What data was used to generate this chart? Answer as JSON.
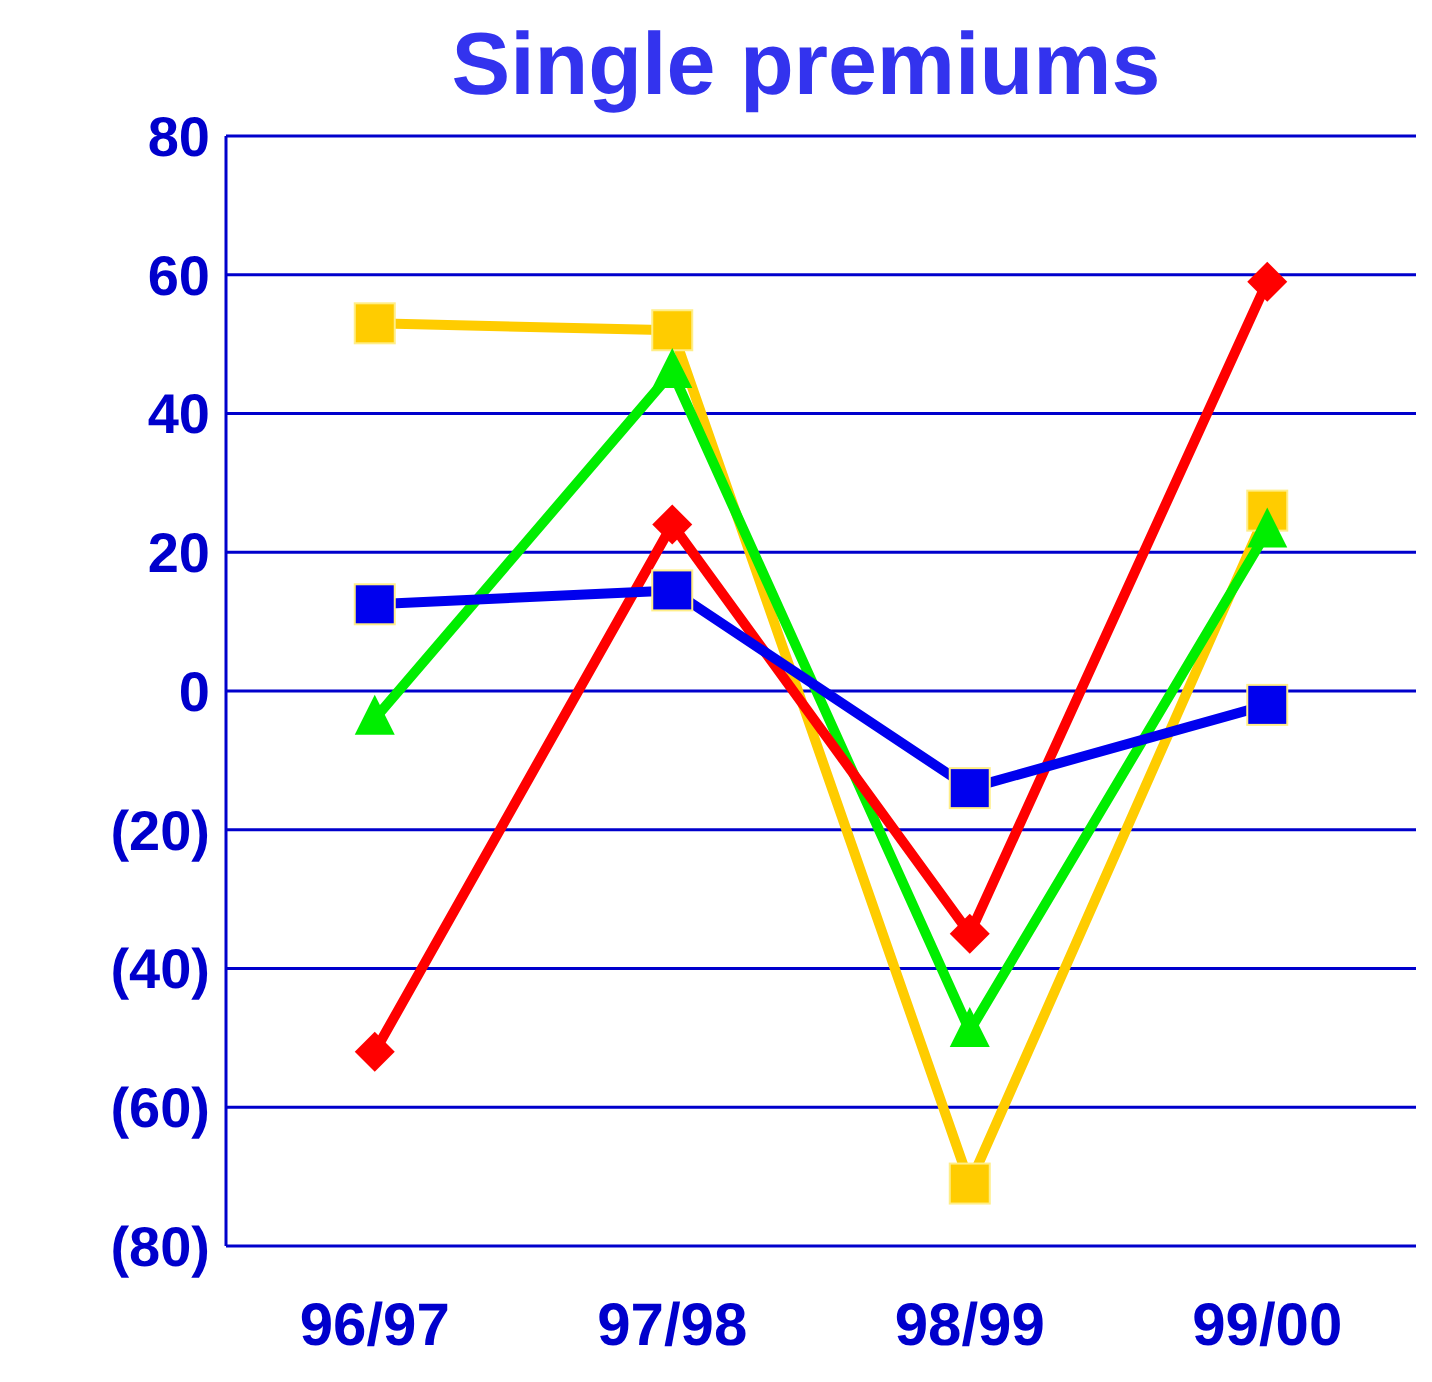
{
  "chart_data": {
    "type": "line",
    "title": "Single premiums",
    "categories": [
      "96/97",
      "97/98",
      "98/99",
      "99/00"
    ],
    "series": [
      {
        "color": "#ffcc00",
        "marker": "square",
        "values": [
          53,
          52,
          -71,
          26
        ]
      },
      {
        "color": "#00ee00",
        "marker": "triangle",
        "values": [
          -4,
          46,
          -49,
          23
        ]
      },
      {
        "color": "#ff0000",
        "marker": "diamond",
        "values": [
          -52,
          24,
          -35,
          59
        ]
      },
      {
        "color": "#0000ee",
        "marker": "square",
        "values": [
          12.5,
          14.5,
          -14,
          -2
        ]
      }
    ],
    "ylim": [
      -80,
      80
    ],
    "yticks": [
      80,
      60,
      40,
      20,
      0,
      {
        "value": -20,
        "label": "(20)"
      },
      {
        "value": -40,
        "label": "(40)"
      },
      {
        "value": -60,
        "label": "(60)"
      },
      {
        "value": -80,
        "label": "(80)"
      }
    ],
    "grid": "y"
  }
}
